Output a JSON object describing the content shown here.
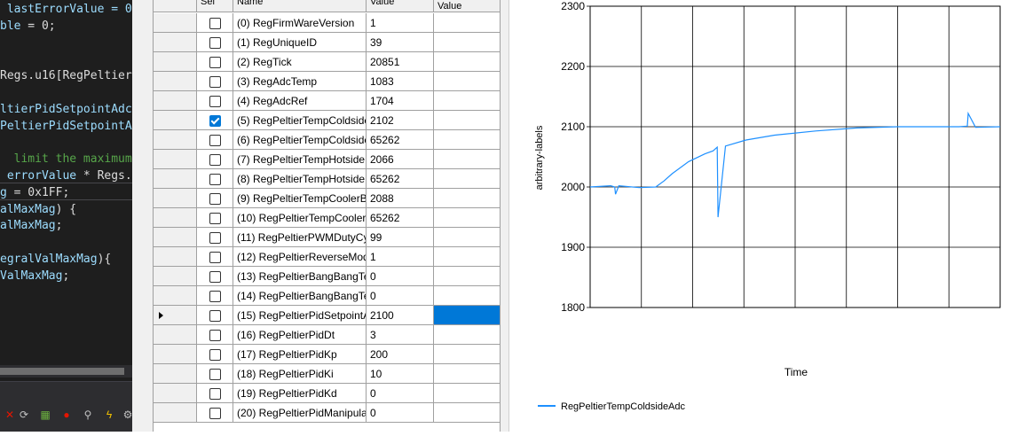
{
  "editor": {
    "lines": [
      {
        "spans": [
          {
            "t": " lastErrorValue = 0",
            "c": "var"
          }
        ]
      },
      {
        "spans": [
          {
            "t": "ble",
            "c": "var"
          },
          {
            "t": " = 0;",
            "c": "plain"
          }
        ]
      },
      {
        "spans": []
      },
      {
        "spans": []
      },
      {
        "spans": [
          {
            "t": "Regs.u16[RegPeltier",
            "c": "plain"
          }
        ]
      },
      {
        "spans": []
      },
      {
        "spans": [
          {
            "t": "ltierPidSetpointAdc",
            "c": "var"
          }
        ]
      },
      {
        "spans": [
          {
            "t": "PeltierPidSetpointA",
            "c": "var"
          }
        ]
      },
      {
        "spans": []
      },
      {
        "spans": [
          {
            "t": "  limit the maximum",
            "c": "cmt"
          }
        ]
      },
      {
        "spans": [
          {
            "t": " errorValue",
            "c": "var"
          },
          {
            "t": " * Regs.",
            "c": "plain"
          }
        ]
      },
      {
        "spans": [
          {
            "t": "g",
            "c": "var"
          },
          {
            "t": " = 0x1FF;",
            "c": "plain"
          }
        ]
      },
      {
        "spans": [
          {
            "t": "alMaxMag",
            "c": "var"
          },
          {
            "t": ") {",
            "c": "plain"
          }
        ]
      },
      {
        "spans": [
          {
            "t": "alMaxMag",
            "c": "var"
          },
          {
            "t": ";",
            "c": "plain"
          }
        ]
      },
      {
        "spans": []
      },
      {
        "spans": [
          {
            "t": "egralValMaxMag",
            "c": "var"
          },
          {
            "t": "){",
            "c": "plain"
          }
        ]
      },
      {
        "spans": [
          {
            "t": "ValMaxMag",
            "c": "var"
          },
          {
            "t": ";",
            "c": "plain"
          }
        ]
      }
    ],
    "toolbar_icons": [
      "close-icon",
      "debug-icon",
      "grid-icon",
      "record-icon",
      "search-icon",
      "lightning-icon",
      "settings-icon"
    ]
  },
  "grid": {
    "columns": {
      "sel": "Sel",
      "name": "Name",
      "value": "Value",
      "new_value": "Value"
    },
    "rows": [
      {
        "name": "(0) RegFirmWareVersion",
        "value": "1",
        "checked": false
      },
      {
        "name": "(1) RegUniqueID",
        "value": "39",
        "checked": false
      },
      {
        "name": "(2) RegTick",
        "value": "20851",
        "checked": false
      },
      {
        "name": "(3) RegAdcTemp",
        "value": "1083",
        "checked": false
      },
      {
        "name": "(4) RegAdcRef",
        "value": "1704",
        "checked": false
      },
      {
        "name": "(5) RegPeltierTempColdside...",
        "value": "2102",
        "checked": true
      },
      {
        "name": "(6) RegPeltierTempColdside...",
        "value": "65262",
        "checked": false
      },
      {
        "name": "(7) RegPeltierTempHotside...",
        "value": "2066",
        "checked": false
      },
      {
        "name": "(8) RegPeltierTempHotside...",
        "value": "65262",
        "checked": false
      },
      {
        "name": "(9) RegPeltierTempCoolerB...",
        "value": "2088",
        "checked": false
      },
      {
        "name": "(10) RegPeltierTempCooler...",
        "value": "65262",
        "checked": false
      },
      {
        "name": "(11) RegPeltierPWMDutyCy...",
        "value": "99",
        "checked": false
      },
      {
        "name": "(12) RegPeltierReverseMode",
        "value": "1",
        "checked": false
      },
      {
        "name": "(13) RegPeltierBangBangTe...",
        "value": "0",
        "checked": false
      },
      {
        "name": "(14) RegPeltierBangBangTe...",
        "value": "0",
        "checked": false
      },
      {
        "name": "(15) RegPeltierPidSetpointA...",
        "value": "2100",
        "checked": false,
        "current": true
      },
      {
        "name": "(16) RegPeltierPidDt",
        "value": "3",
        "checked": false
      },
      {
        "name": "(17) RegPeltierPidKp",
        "value": "200",
        "checked": false
      },
      {
        "name": "(18) RegPeltierPidKi",
        "value": "10",
        "checked": false
      },
      {
        "name": "(19) RegPeltierPidKd",
        "value": "0",
        "checked": false
      },
      {
        "name": "(20) RegPeltierPidManipulat...",
        "value": "0",
        "checked": false
      }
    ]
  },
  "chart_data": {
    "type": "line",
    "ylabel": "arbitrary-labels",
    "xlabel": "Time",
    "ylim": [
      1800,
      2300
    ],
    "yticks": [
      1800,
      1900,
      2000,
      2100,
      2200,
      2300
    ],
    "x_divisions": 8,
    "grid": true,
    "legend_position": "bottom-left",
    "series": [
      {
        "name": "RegPeltierTempColdsideAdc",
        "color": "#1e90ff",
        "x": [
          0,
          0.05,
          0.06,
          0.062,
          0.07,
          0.12,
          0.16,
          0.18,
          0.2,
          0.24,
          0.28,
          0.3,
          0.31,
          0.312,
          0.33,
          0.38,
          0.45,
          0.55,
          0.65,
          0.75,
          0.85,
          0.9,
          0.92,
          0.922,
          0.94,
          1.0
        ],
        "values": [
          2000,
          2002,
          2000,
          1988,
          2002,
          1999,
          2000,
          2010,
          2022,
          2042,
          2055,
          2060,
          2066,
          1950,
          2068,
          2078,
          2086,
          2093,
          2098,
          2100,
          2100,
          2100,
          2101,
          2122,
          2099,
          2100
        ]
      }
    ]
  }
}
